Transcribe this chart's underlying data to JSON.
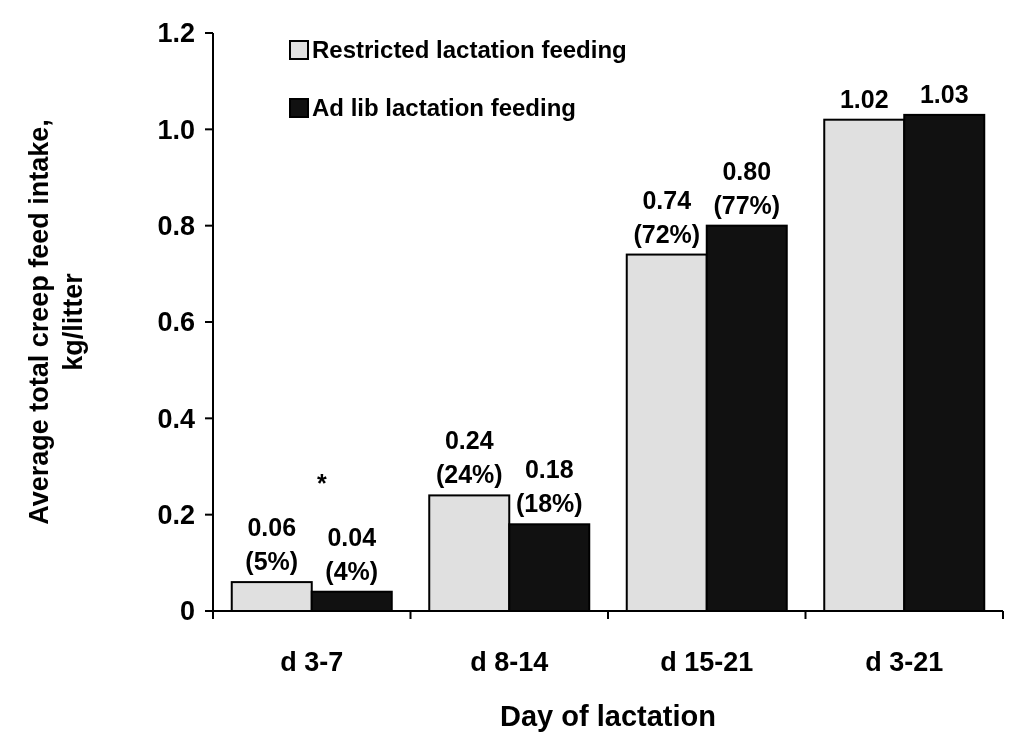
{
  "chart_data": {
    "type": "bar",
    "xlabel": "Day of lactation",
    "ylabel": "Average total creep feed intake, kg/litter",
    "categories": [
      "d 3-7",
      "d 8-14",
      "d 15-21",
      "d 3-21"
    ],
    "series": [
      {
        "name": "Restricted lactation feeding",
        "color": "#e0e0e0",
        "values": [
          0.06,
          0.24,
          0.74,
          1.02
        ],
        "value_labels": [
          "0.06 (5%)",
          "0.24 (24%)",
          "0.74 (72%)",
          "1.02"
        ]
      },
      {
        "name": "Ad lib lactation feeding",
        "color": "#111111",
        "values": [
          0.04,
          0.18,
          0.8,
          1.03
        ],
        "value_labels": [
          "0.04 (4%)",
          "0.18 (18%)",
          "0.80 (77%)",
          "1.03"
        ]
      }
    ],
    "ylim": [
      0,
      1.2
    ],
    "yticks": [
      0,
      0.2,
      0.4,
      0.6,
      0.8,
      {
        "value": 1,
        "label": "1.0"
      },
      1.2
    ],
    "annotations": [
      "*"
    ],
    "legend": "top left"
  }
}
